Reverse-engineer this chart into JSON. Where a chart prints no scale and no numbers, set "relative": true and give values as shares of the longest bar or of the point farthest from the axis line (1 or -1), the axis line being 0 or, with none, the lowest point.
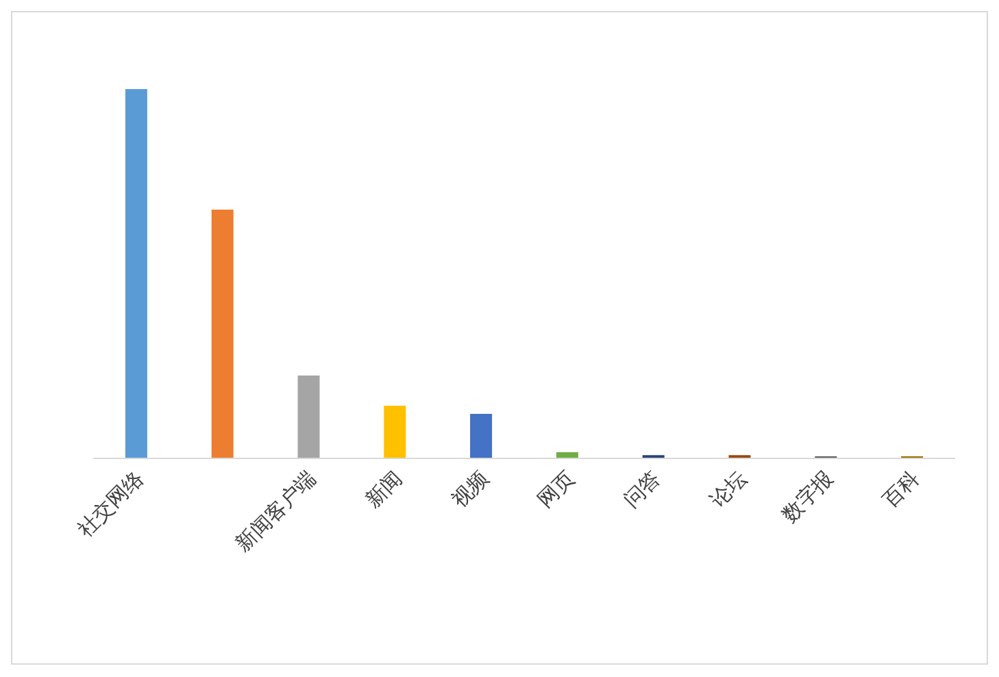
{
  "chart_data": {
    "type": "bar",
    "relative": true,
    "categories": [
      "社交网络",
      null,
      "新闻客户端",
      "新闻",
      "视频",
      "网页",
      "问答",
      "论坛",
      "数字报",
      "百科"
    ],
    "values": [
      1,
      0.673,
      0.223,
      0.141,
      0.119,
      0.015,
      0.007,
      0.007,
      0.004,
      0.004
    ],
    "colors": [
      "#5b9bd5",
      "#ed7d31",
      "#a5a5a5",
      "#ffc000",
      "#4472c4",
      "#70ad47",
      "#264478",
      "#9e480e",
      "#636363",
      "#997300"
    ]
  }
}
